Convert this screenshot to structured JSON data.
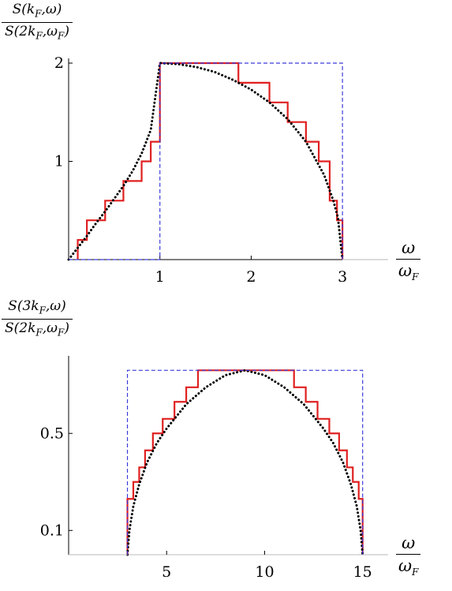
{
  "chart_data": [
    {
      "type": "line",
      "ylabel_num": "S(k_F,ω)",
      "ylabel_den": "S(2k_F,ω_F)",
      "xlabel_num": "ω",
      "xlabel_den": "ω_F",
      "xlim": [
        0,
        3.5
      ],
      "ylim": [
        0,
        2
      ],
      "xticks": [
        1,
        2,
        3
      ],
      "yticks": [
        1,
        2
      ],
      "series": [
        {
          "style": "solid",
          "color": "#e02020",
          "kind": "step",
          "x": [
            0.1,
            0.1,
            0.2,
            0.2,
            0.4,
            0.4,
            0.6,
            0.6,
            0.8,
            0.8,
            0.9,
            0.9,
            1.0,
            1.0,
            1.86,
            1.86,
            2.2,
            2.2,
            2.4,
            2.4,
            2.6,
            2.6,
            2.74,
            2.74,
            2.86,
            2.86,
            2.94,
            2.94,
            3.0,
            3.0
          ],
          "y": [
            0,
            0.2,
            0.2,
            0.4,
            0.4,
            0.6,
            0.6,
            0.8,
            0.8,
            1.0,
            1.0,
            1.2,
            1.2,
            2.0,
            2.0,
            1.8,
            1.8,
            1.6,
            1.6,
            1.4,
            1.4,
            1.2,
            1.2,
            1.0,
            1.0,
            0.6,
            0.6,
            0.4,
            0.4,
            0
          ]
        },
        {
          "style": "dotted",
          "color": "#000000",
          "kind": "curve",
          "x": [
            0,
            0.1,
            0.2,
            0.3,
            0.4,
            0.5,
            0.6,
            0.7,
            0.8,
            0.9,
            1.0,
            1.2,
            1.4,
            1.6,
            1.8,
            2.0,
            2.2,
            2.4,
            2.6,
            2.8,
            2.9,
            2.95,
            3.0
          ],
          "y": [
            0,
            0.12,
            0.24,
            0.37,
            0.49,
            0.62,
            0.75,
            0.9,
            1.08,
            1.32,
            2.0,
            1.99,
            1.96,
            1.91,
            1.83,
            1.73,
            1.6,
            1.43,
            1.2,
            0.86,
            0.6,
            0.43,
            0
          ]
        },
        {
          "style": "dashed",
          "color": "#3a3adc",
          "kind": "box",
          "x": [
            0,
            1.0,
            1.0,
            3.0,
            3.0
          ],
          "y": [
            0,
            0,
            2.0,
            2.0,
            0
          ]
        },
        {
          "style": "solid",
          "color": "#c8c8c8",
          "kind": "baseline",
          "x": [
            3.0,
            3.5
          ],
          "y": [
            0,
            0
          ]
        }
      ]
    },
    {
      "type": "line",
      "ylabel_num": "S(3k_F,ω)",
      "ylabel_den": "S(2k_F,ω_F)",
      "xlabel_num": "ω",
      "xlabel_den": "ω_F",
      "xlim": [
        0,
        16.3
      ],
      "ylim": [
        0,
        0.8
      ],
      "xticks": [
        5,
        10,
        15
      ],
      "yticks": [
        0.1,
        0.5
      ],
      "ytick_labels": [
        "0.1",
        "0.5"
      ],
      "series": [
        {
          "style": "solid",
          "color": "#e02020",
          "kind": "step",
          "x": [
            3.0,
            3.0,
            3.3,
            3.3,
            3.6,
            3.6,
            3.9,
            3.9,
            4.3,
            4.3,
            4.8,
            4.8,
            5.4,
            5.4,
            6.0,
            6.0,
            6.6,
            6.6,
            11.5,
            11.5,
            12.1,
            12.1,
            12.7,
            12.7,
            13.3,
            13.3,
            13.8,
            13.8,
            14.2,
            14.2,
            14.5,
            14.5,
            14.8,
            14.8,
            15.0,
            15.0
          ],
          "y": [
            0,
            0.23,
            0.23,
            0.3,
            0.3,
            0.36,
            0.36,
            0.43,
            0.43,
            0.5,
            0.5,
            0.56,
            0.56,
            0.63,
            0.63,
            0.69,
            0.69,
            0.76,
            0.76,
            0.69,
            0.69,
            0.63,
            0.63,
            0.56,
            0.56,
            0.5,
            0.5,
            0.43,
            0.43,
            0.36,
            0.36,
            0.3,
            0.3,
            0.23,
            0.23,
            0
          ]
        },
        {
          "style": "dotted",
          "color": "#000000",
          "kind": "curve",
          "x": [
            3.0,
            3.1,
            3.3,
            3.6,
            4.0,
            4.5,
            5.0,
            5.5,
            6.0,
            7.0,
            8.0,
            9.0,
            10.0,
            11.0,
            12.0,
            12.5,
            13.0,
            13.5,
            14.0,
            14.4,
            14.7,
            14.9,
            15.0
          ],
          "y": [
            0,
            0.1,
            0.2,
            0.29,
            0.38,
            0.46,
            0.52,
            0.57,
            0.62,
            0.69,
            0.74,
            0.76,
            0.74,
            0.69,
            0.62,
            0.57,
            0.52,
            0.46,
            0.38,
            0.29,
            0.2,
            0.1,
            0
          ]
        },
        {
          "style": "dashed",
          "color": "#3a3adc",
          "kind": "box",
          "x": [
            3.0,
            3.0,
            15.0,
            15.0
          ],
          "y": [
            0,
            0.76,
            0.76,
            0
          ]
        },
        {
          "style": "solid",
          "color": "#c8c8c8",
          "kind": "baseline",
          "x": [
            0,
            3.0
          ],
          "y": [
            0,
            0
          ]
        },
        {
          "style": "solid",
          "color": "#c8c8c8",
          "kind": "baseline",
          "x": [
            15.0,
            16.3
          ],
          "y": [
            0,
            0
          ]
        }
      ]
    }
  ]
}
